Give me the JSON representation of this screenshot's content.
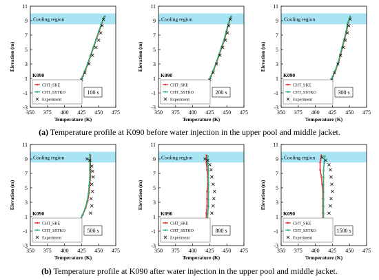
{
  "captions": {
    "a_label": "(a)",
    "a_text": " Temperature profile at K090 before water injection in the upper pool and middle jacket.",
    "b_label": "(b)",
    "b_text": " Temperature profile at K090 after water injection in the upper pool and middle jacket."
  },
  "colors": {
    "ske": "#e23a3a",
    "sstko": "#2bb07a",
    "experiment": "#000000",
    "cooling_band": "#a9e4f5"
  },
  "chart_data": [
    {
      "type": "scatter",
      "panel": "a-1",
      "title": "",
      "location_label": "K090",
      "time_label": "100 s",
      "xlabel": "Temperature (K)",
      "ylabel": "Elevation (m)",
      "xlim": [
        350,
        475
      ],
      "ylim": [
        -3,
        11
      ],
      "xticks": [
        "350",
        "375",
        "400",
        "425",
        "450",
        "475"
      ],
      "yticks": [
        "-3",
        "-1",
        "1",
        "3",
        "5",
        "7",
        "9",
        "11"
      ],
      "band": {
        "label": "Cooling region",
        "y": [
          8.5,
          10.0
        ]
      },
      "legend": [
        "CHT_SKE",
        "CHT_SSTKO",
        "Experiment"
      ],
      "series": [
        {
          "name": "CHT_SKE",
          "x": [
            423,
            427,
            431,
            435,
            439,
            443,
            447,
            451,
            455,
            458
          ],
          "y": [
            0.5,
            1.3,
            2.2,
            3.2,
            4.3,
            5.4,
            6.5,
            7.6,
            8.7,
            9.5
          ]
        },
        {
          "name": "CHT_SSTKO",
          "x": [
            422,
            426,
            430,
            434,
            438,
            442,
            446,
            450,
            454,
            459
          ],
          "y": [
            0.4,
            1.2,
            2.1,
            3.1,
            4.2,
            5.3,
            6.4,
            7.5,
            8.6,
            9.6
          ]
        },
        {
          "name": "Experiment",
          "x": [
            425,
            430,
            436,
            441,
            446,
            450,
            453,
            455,
            457
          ],
          "y": [
            0.8,
            1.8,
            3.0,
            4.2,
            5.3,
            6.3,
            7.3,
            8.3,
            9.2
          ]
        }
      ]
    },
    {
      "type": "scatter",
      "panel": "a-2",
      "title": "",
      "location_label": "K090",
      "time_label": "200 s",
      "xlabel": "Temperature (K)",
      "ylabel": "Elevation (m)",
      "xlim": [
        350,
        475
      ],
      "ylim": [
        -3,
        11
      ],
      "xticks": [
        "350",
        "375",
        "400",
        "425",
        "450",
        "475"
      ],
      "yticks": [
        "-3",
        "-1",
        "1",
        "3",
        "5",
        "7",
        "9",
        "11"
      ],
      "band": {
        "label": "Cooling region",
        "y": [
          8.5,
          10.0
        ]
      },
      "legend": [
        "CHT_SKE",
        "CHT_SSTKO",
        "Experiment"
      ],
      "series": [
        {
          "name": "CHT_SKE",
          "x": [
            423,
            427,
            431,
            435,
            439,
            443,
            447,
            450,
            453,
            456
          ],
          "y": [
            0.5,
            1.3,
            2.2,
            3.2,
            4.3,
            5.4,
            6.5,
            7.6,
            8.7,
            9.5
          ]
        },
        {
          "name": "CHT_SSTKO",
          "x": [
            422,
            426,
            430,
            434,
            438,
            442,
            446,
            449,
            452,
            456
          ],
          "y": [
            0.4,
            1.2,
            2.1,
            3.1,
            4.2,
            5.3,
            6.4,
            7.5,
            8.6,
            9.6
          ]
        },
        {
          "name": "Experiment",
          "x": [
            425,
            430,
            435,
            440,
            444,
            448,
            451,
            453,
            455
          ],
          "y": [
            0.8,
            1.8,
            3.0,
            4.2,
            5.3,
            6.3,
            7.3,
            8.3,
            9.2
          ]
        }
      ]
    },
    {
      "type": "scatter",
      "panel": "a-3",
      "title": "",
      "location_label": "K090",
      "time_label": "300 s",
      "xlabel": "Temperature (K)",
      "ylabel": "Elevation (m)",
      "xlim": [
        350,
        475
      ],
      "ylim": [
        -3,
        11
      ],
      "xticks": [
        "350",
        "375",
        "400",
        "425",
        "450",
        "475"
      ],
      "yticks": [
        "-3",
        "-1",
        "1",
        "3",
        "5",
        "7",
        "9",
        "11"
      ],
      "band": {
        "label": "Cooling region",
        "y": [
          8.5,
          10.0
        ]
      },
      "legend": [
        "CHT_SKE",
        "CHT_SSTKO",
        "Experiment"
      ],
      "series": [
        {
          "name": "CHT_SKE",
          "x": [
            422,
            426,
            430,
            434,
            437,
            440,
            443,
            446,
            448,
            451
          ],
          "y": [
            0.5,
            1.3,
            2.2,
            3.2,
            4.3,
            5.4,
            6.5,
            7.6,
            8.7,
            9.5
          ]
        },
        {
          "name": "CHT_SSTKO",
          "x": [
            421,
            425,
            429,
            433,
            436,
            439,
            442,
            445,
            447,
            451
          ],
          "y": [
            0.4,
            1.2,
            2.1,
            3.1,
            4.2,
            5.3,
            6.4,
            7.5,
            8.6,
            9.6
          ]
        },
        {
          "name": "Experiment",
          "x": [
            424,
            428,
            433,
            437,
            441,
            444,
            447,
            449,
            451
          ],
          "y": [
            0.8,
            1.8,
            3.0,
            4.2,
            5.3,
            6.3,
            7.3,
            8.3,
            9.2
          ]
        }
      ]
    },
    {
      "type": "scatter",
      "panel": "b-1",
      "title": "",
      "location_label": "K090",
      "time_label": "500 s",
      "xlabel": "Temperature (K)",
      "ylabel": "Elevation (m)",
      "xlim": [
        350,
        475
      ],
      "ylim": [
        -3,
        11
      ],
      "xticks": [
        "350",
        "375",
        "400",
        "425",
        "450",
        "475"
      ],
      "yticks": [
        "-3",
        "-1",
        "1",
        "3",
        "5",
        "7",
        "9",
        "11"
      ],
      "band": {
        "label": "Cooling region",
        "y": [
          8.5,
          10.0
        ]
      },
      "legend": [
        "CHT_SKE",
        "CHT_SSTKO",
        "Experiment"
      ],
      "series": [
        {
          "name": "CHT_SKE",
          "x": [
            423,
            427,
            431,
            434,
            436,
            437,
            438,
            438,
            438,
            438
          ],
          "y": [
            0.5,
            1.3,
            2.2,
            3.2,
            4.3,
            5.4,
            6.5,
            7.6,
            8.7,
            9.5
          ]
        },
        {
          "name": "CHT_SSTKO",
          "x": [
            422,
            426,
            430,
            433,
            435,
            436,
            437,
            437,
            437,
            437
          ],
          "y": [
            0.4,
            1.2,
            2.1,
            3.1,
            4.2,
            5.3,
            6.4,
            7.5,
            8.6,
            9.6
          ]
        },
        {
          "name": "Experiment",
          "x": [
            438,
            440,
            439,
            441,
            440,
            442,
            441,
            440,
            437,
            433
          ],
          "y": [
            1.5,
            2.5,
            3.5,
            4.5,
            5.5,
            6.5,
            7.3,
            8.0,
            8.8,
            9.0
          ]
        }
      ]
    },
    {
      "type": "scatter",
      "panel": "b-2",
      "title": "",
      "location_label": "K090",
      "time_label": "800 s",
      "xlabel": "Temperature (K)",
      "ylabel": "Elevation (m)",
      "xlim": [
        350,
        475
      ],
      "ylim": [
        -3,
        11
      ],
      "xticks": [
        "350",
        "375",
        "400",
        "425",
        "450",
        "475"
      ],
      "yticks": [
        "-3",
        "-1",
        "1",
        "3",
        "5",
        "7",
        "9",
        "11"
      ],
      "band": {
        "label": "Cooling region",
        "y": [
          8.5,
          10.0
        ]
      },
      "legend": [
        "CHT_SKE",
        "CHT_SSTKO",
        "Experiment"
      ],
      "series": [
        {
          "name": "CHT_SKE",
          "x": [
            420,
            420,
            421,
            421,
            421,
            422,
            422,
            421,
            420,
            420
          ],
          "y": [
            0.5,
            1.5,
            2.5,
            3.5,
            4.5,
            5.5,
            6.5,
            7.5,
            8.5,
            9.5
          ]
        },
        {
          "name": "CHT_SSTKO",
          "x": [
            422,
            422,
            423,
            423,
            423,
            423,
            423,
            423,
            422,
            422
          ],
          "y": [
            0.4,
            1.4,
            2.4,
            3.4,
            4.4,
            5.4,
            6.4,
            7.4,
            8.4,
            9.4
          ]
        },
        {
          "name": "Experiment",
          "x": [
            428,
            430,
            431,
            432,
            430,
            428,
            427,
            425,
            422,
            418
          ],
          "y": [
            1.5,
            2.5,
            3.5,
            4.5,
            5.5,
            6.5,
            7.5,
            8.2,
            8.8,
            9.0
          ]
        }
      ]
    },
    {
      "type": "scatter",
      "panel": "b-3",
      "title": "",
      "location_label": "K090",
      "time_label": "1500 s",
      "xlabel": "Temperature (K)",
      "ylabel": "Elevation (m)",
      "xlim": [
        350,
        475
      ],
      "ylim": [
        -3,
        11
      ],
      "xticks": [
        "350",
        "375",
        "400",
        "425",
        "450",
        "475"
      ],
      "yticks": [
        "-3",
        "-1",
        "1",
        "3",
        "5",
        "7",
        "9",
        "11"
      ],
      "band": {
        "label": "Cooling region",
        "y": [
          8.5,
          10.0
        ]
      },
      "legend": [
        "CHT_SKE",
        "CHT_SSTKO",
        "Experiment"
      ],
      "series": [
        {
          "name": "CHT_SKE",
          "x": [
            411,
            411,
            411,
            411,
            411,
            410,
            409,
            407,
            407,
            409
          ],
          "y": [
            0.5,
            1.5,
            2.5,
            3.5,
            4.5,
            5.5,
            6.5,
            7.5,
            8.5,
            9.5
          ]
        },
        {
          "name": "CHT_SSTKO",
          "x": [
            412,
            412,
            412,
            412,
            412,
            412,
            412,
            412,
            413,
            414
          ],
          "y": [
            0.4,
            1.4,
            2.4,
            3.4,
            4.4,
            5.4,
            6.4,
            7.4,
            8.4,
            9.4
          ]
        },
        {
          "name": "Experiment",
          "x": [
            420,
            422,
            423,
            425,
            424,
            423,
            422,
            420,
            415,
            410
          ],
          "y": [
            1.5,
            2.5,
            3.5,
            4.5,
            5.5,
            6.5,
            7.5,
            8.2,
            8.8,
            9.2
          ]
        }
      ]
    }
  ]
}
